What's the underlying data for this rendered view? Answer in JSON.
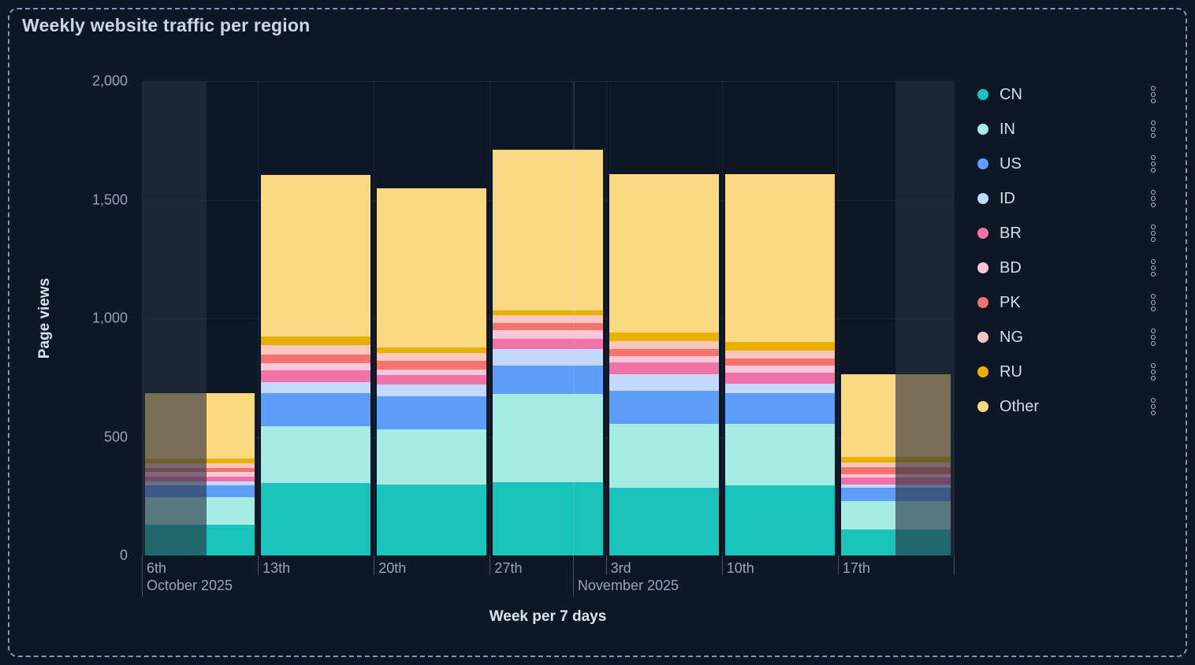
{
  "title": "Weekly website traffic per region",
  "y_axis": {
    "label": "Page views",
    "ticks": [
      "2,000",
      "1,500",
      "1,000",
      "500",
      "0"
    ]
  },
  "x_axis": {
    "label": "Week per 7 days",
    "days": [
      "6th",
      "13th",
      "20th",
      "27th",
      "3rd",
      "10th",
      "17th"
    ],
    "months": [
      {
        "label": "October 2025",
        "x_frac": 0.0
      },
      {
        "label": "November 2025",
        "x_frac": 0.531
      }
    ]
  },
  "chart_data": {
    "type": "bar",
    "stacked": true,
    "title": "Weekly website traffic per region",
    "xlabel": "Week per 7 days",
    "ylabel": "Page views",
    "ylim": [
      0,
      2000
    ],
    "y_ticks": [
      0,
      500,
      1000,
      1500,
      2000
    ],
    "grid": true,
    "legend_position": "right",
    "categories": [
      "6th Oct 2025",
      "13th Oct 2025",
      "20th Oct 2025",
      "27th Oct 2025",
      "3rd Nov 2025",
      "10th Nov 2025",
      "17th Nov 2025"
    ],
    "totals": [
      685,
      1605,
      1550,
      1710,
      1608,
      1608,
      765
    ],
    "series": [
      {
        "name": "CN",
        "color": "#18c3bb",
        "values": [
          130,
          305,
          300,
          310,
          285,
          295,
          110
        ]
      },
      {
        "name": "IN",
        "color": "#a7ece4",
        "values": [
          115,
          240,
          230,
          370,
          270,
          260,
          120
        ]
      },
      {
        "name": "US",
        "color": "#5d9efb",
        "values": [
          52,
          140,
          140,
          120,
          140,
          130,
          55
        ]
      },
      {
        "name": "ID",
        "color": "#c2d9fc",
        "values": [
          15,
          47,
          50,
          70,
          70,
          40,
          15
        ]
      },
      {
        "name": "BR",
        "color": "#ef72a8",
        "values": [
          22,
          50,
          40,
          45,
          50,
          45,
          30
        ]
      },
      {
        "name": "BD",
        "color": "#fbc6d9",
        "values": [
          17,
          30,
          25,
          35,
          25,
          30,
          13
        ]
      },
      {
        "name": "PK",
        "color": "#f4736c",
        "values": [
          19,
          37,
          35,
          30,
          30,
          30,
          28
        ]
      },
      {
        "name": "NG",
        "color": "#fcc6bf",
        "values": [
          20,
          37,
          33,
          33,
          33,
          35,
          20
        ]
      },
      {
        "name": "RU",
        "color": "#e8b000",
        "values": [
          20,
          37,
          25,
          22,
          37,
          35,
          25
        ]
      },
      {
        "name": "Other",
        "color": "#fcd883",
        "values": [
          275,
          682,
          672,
          675,
          668,
          708,
          349
        ]
      }
    ],
    "partial_weeks": {
      "first_fraction": 0.56,
      "last_fraction": 0.5
    }
  }
}
